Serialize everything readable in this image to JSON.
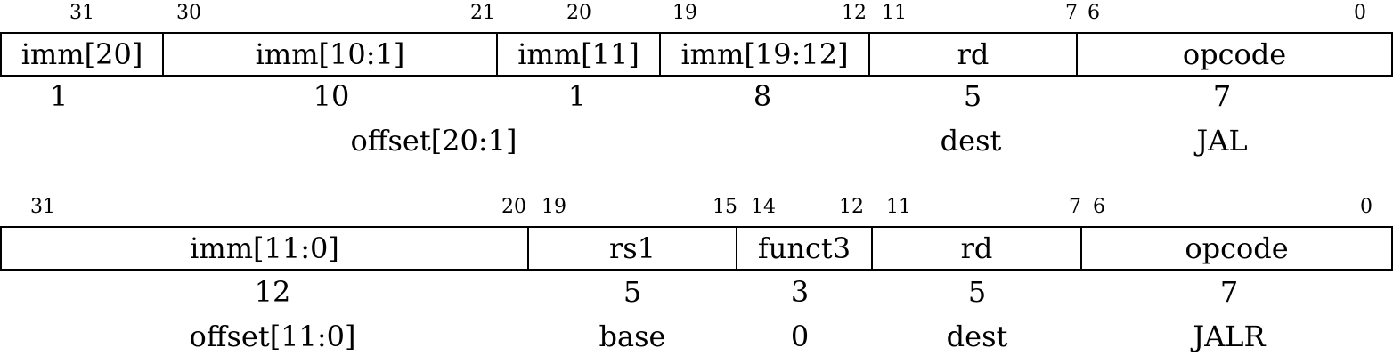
{
  "jal": {
    "fields": [
      {
        "hi": "31",
        "lo": "",
        "label": "imm[20]",
        "width": "1"
      },
      {
        "hi": "30",
        "lo": "21",
        "label": "imm[10:1]",
        "width": "10"
      },
      {
        "hi": "20",
        "lo": "",
        "label": "imm[11]",
        "width": "1"
      },
      {
        "hi": "19",
        "lo": "12",
        "label": "imm[19:12]",
        "width": "8"
      },
      {
        "hi": "11",
        "lo": "7",
        "label": "rd",
        "width": "5"
      },
      {
        "hi": "6",
        "lo": "0",
        "label": "opcode",
        "width": "7"
      }
    ],
    "descriptions": [
      "offset[20:1]",
      "dest",
      "JAL"
    ]
  },
  "jalr": {
    "fields": [
      {
        "hi": "31",
        "lo": "20",
        "label": "imm[11:0]",
        "width": "12"
      },
      {
        "hi": "19",
        "lo": "15",
        "label": "rs1",
        "width": "5"
      },
      {
        "hi": "14",
        "lo": "12",
        "label": "funct3",
        "width": "3"
      },
      {
        "hi": "11",
        "lo": "7",
        "label": "rd",
        "width": "5"
      },
      {
        "hi": "6",
        "lo": "0",
        "label": "opcode",
        "width": "7"
      }
    ],
    "descriptions": [
      "offset[11:0]",
      "base",
      "0",
      "dest",
      "JALR"
    ]
  }
}
